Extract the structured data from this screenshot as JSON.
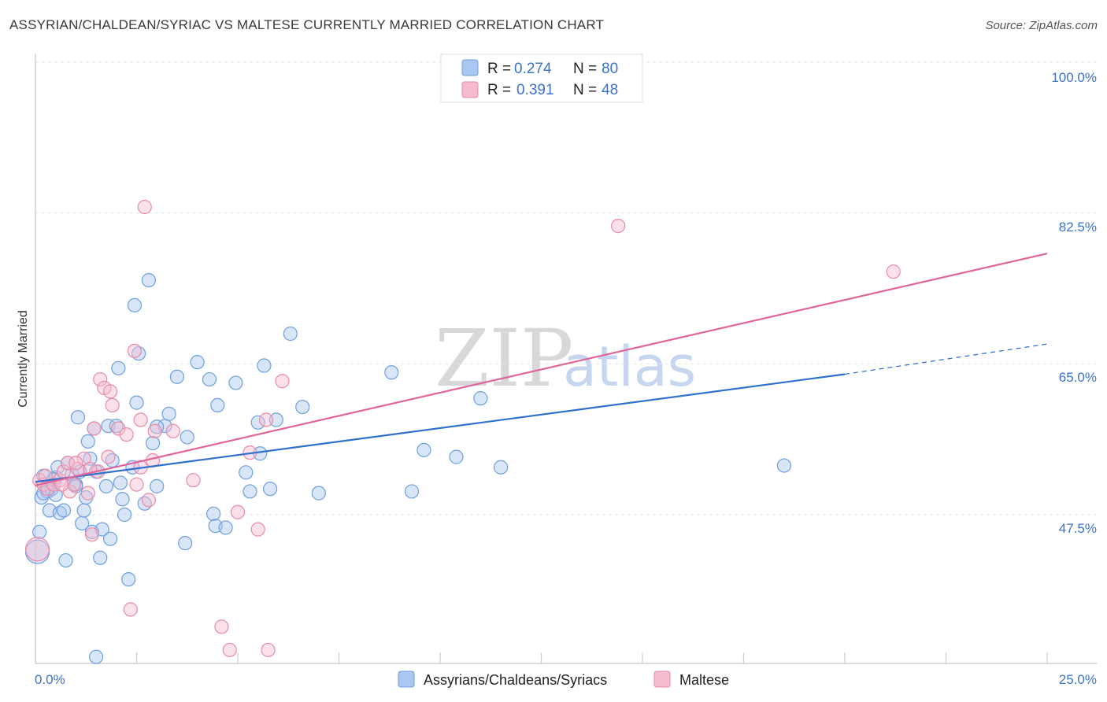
{
  "title": "ASSYRIAN/CHALDEAN/SYRIAC VS MALTESE CURRENTLY MARRIED CORRELATION CHART",
  "source": "Source: ZipAtlas.com",
  "watermark": {
    "zip": "ZIP",
    "atlas": "atlas"
  },
  "chart_data": {
    "type": "scatter",
    "title": "ASSYRIAN/CHALDEAN/SYRIAC VS MALTESE CURRENTLY MARRIED CORRELATION CHART",
    "xlabel": "",
    "ylabel": "Currently Married",
    "xlim": [
      0,
      25
    ],
    "ylim": [
      33,
      102
    ],
    "x_tick_labels": [
      "0.0%",
      "25.0%"
    ],
    "y_ticks": [
      47.5,
      65.0,
      82.5,
      100.0
    ],
    "y_tick_labels": [
      "47.5%",
      "65.0%",
      "82.5%",
      "100.0%"
    ],
    "grid": true,
    "legend": {
      "position": "top-center",
      "entries": [
        {
          "r_label": "R = ",
          "r_value": "0.274",
          "n_label": "N = ",
          "n_value": "80"
        },
        {
          "r_label": "R = ",
          "r_value": "0.391",
          "n_label": "N = ",
          "n_value": "48"
        }
      ]
    },
    "series": [
      {
        "name": "Assyrians/Chaldeans/Syriacs",
        "color": "#6f9fe0",
        "fill": "#a9c7f0",
        "trend": {
          "x0": 0,
          "y0": 51.3,
          "x1": 20,
          "y1": 63.8,
          "dash_x1": 25,
          "dash_y1": 67.3,
          "color": "#2f6fce"
        },
        "points": [
          [
            0.1,
            45.5
          ],
          [
            0.15,
            49.5
          ],
          [
            0.2,
            52.0
          ],
          [
            0.3,
            50.2
          ],
          [
            0.35,
            48.0
          ],
          [
            0.4,
            50.5
          ],
          [
            0.5,
            51.8
          ],
          [
            0.55,
            53.0
          ],
          [
            0.6,
            47.7
          ],
          [
            0.7,
            48.0
          ],
          [
            0.75,
            42.2
          ],
          [
            0.8,
            53.5
          ],
          [
            0.9,
            52.2
          ],
          [
            1.0,
            51.0
          ],
          [
            1.05,
            58.8
          ],
          [
            1.1,
            52.5
          ],
          [
            1.15,
            46.5
          ],
          [
            1.2,
            48.0
          ],
          [
            1.25,
            49.5
          ],
          [
            1.3,
            56.0
          ],
          [
            1.35,
            54.0
          ],
          [
            1.4,
            45.5
          ],
          [
            1.45,
            57.5
          ],
          [
            1.5,
            52.5
          ],
          [
            1.6,
            42.5
          ],
          [
            1.65,
            45.8
          ],
          [
            1.75,
            50.8
          ],
          [
            1.8,
            57.8
          ],
          [
            1.85,
            44.7
          ],
          [
            1.9,
            53.8
          ],
          [
            2.0,
            57.8
          ],
          [
            2.05,
            64.5
          ],
          [
            2.1,
            51.2
          ],
          [
            2.15,
            49.3
          ],
          [
            2.2,
            47.5
          ],
          [
            2.3,
            40.0
          ],
          [
            2.4,
            53.0
          ],
          [
            2.45,
            71.8
          ],
          [
            2.5,
            60.5
          ],
          [
            2.55,
            66.2
          ],
          [
            2.7,
            48.8
          ],
          [
            2.8,
            74.7
          ],
          [
            2.9,
            55.8
          ],
          [
            3.0,
            50.8
          ],
          [
            3.2,
            57.8
          ],
          [
            3.3,
            59.2
          ],
          [
            3.5,
            63.5
          ],
          [
            3.7,
            44.2
          ],
          [
            3.75,
            56.5
          ],
          [
            4.0,
            65.2
          ],
          [
            4.3,
            63.2
          ],
          [
            4.4,
            47.6
          ],
          [
            4.45,
            46.2
          ],
          [
            4.5,
            60.2
          ],
          [
            4.7,
            46.0
          ],
          [
            4.95,
            62.8
          ],
          [
            5.2,
            52.4
          ],
          [
            5.3,
            50.2
          ],
          [
            5.5,
            58.2
          ],
          [
            5.55,
            54.6
          ],
          [
            5.65,
            64.8
          ],
          [
            5.8,
            50.5
          ],
          [
            5.95,
            58.5
          ],
          [
            6.3,
            68.5
          ],
          [
            6.6,
            60.0
          ],
          [
            7.0,
            50.0
          ],
          [
            8.8,
            64.0
          ],
          [
            9.3,
            50.2
          ],
          [
            9.6,
            55.0
          ],
          [
            10.4,
            54.2
          ],
          [
            11.0,
            61.0
          ],
          [
            11.5,
            53.0
          ],
          [
            18.5,
            53.2
          ],
          [
            1.5,
            31.0
          ],
          [
            0.2,
            50.0
          ],
          [
            0.5,
            49.8
          ],
          [
            1.0,
            50.8
          ],
          [
            0.05,
            43.2
          ],
          [
            0.45,
            51.6
          ],
          [
            3.0,
            57.7
          ]
        ]
      },
      {
        "name": "Maltese",
        "color": "#e88aa8",
        "fill": "#f5bcd0",
        "trend": {
          "x0": 0,
          "y0": 50.9,
          "x1": 25,
          "y1": 77.8,
          "color": "#e0649a"
        },
        "points": [
          [
            0.1,
            51.5
          ],
          [
            0.2,
            51.0
          ],
          [
            0.3,
            50.5
          ],
          [
            0.45,
            51.0
          ],
          [
            0.6,
            51.5
          ],
          [
            0.7,
            52.5
          ],
          [
            0.8,
            53.5
          ],
          [
            0.85,
            50.2
          ],
          [
            0.95,
            51.0
          ],
          [
            1.05,
            52.8
          ],
          [
            1.2,
            54.0
          ],
          [
            1.3,
            50.0
          ],
          [
            1.4,
            45.2
          ],
          [
            1.45,
            57.5
          ],
          [
            1.55,
            52.5
          ],
          [
            1.6,
            63.2
          ],
          [
            1.7,
            62.2
          ],
          [
            1.8,
            54.2
          ],
          [
            1.85,
            61.8
          ],
          [
            1.9,
            60.2
          ],
          [
            2.05,
            57.5
          ],
          [
            2.25,
            56.8
          ],
          [
            2.35,
            36.5
          ],
          [
            2.45,
            66.5
          ],
          [
            2.6,
            58.5
          ],
          [
            2.7,
            83.2
          ],
          [
            2.8,
            49.2
          ],
          [
            2.9,
            53.8
          ],
          [
            2.95,
            57.2
          ],
          [
            3.4,
            57.2
          ],
          [
            3.9,
            51.5
          ],
          [
            4.6,
            34.5
          ],
          [
            4.8,
            31.8
          ],
          [
            5.0,
            47.8
          ],
          [
            5.3,
            54.7
          ],
          [
            5.5,
            45.8
          ],
          [
            5.7,
            58.5
          ],
          [
            5.75,
            31.8
          ],
          [
            6.1,
            63.0
          ],
          [
            14.4,
            81.0
          ],
          [
            21.2,
            75.7
          ],
          [
            0.05,
            43.5
          ],
          [
            0.25,
            52.0
          ],
          [
            0.65,
            51.0
          ],
          [
            1.0,
            53.5
          ],
          [
            1.35,
            52.8
          ],
          [
            2.5,
            51.0
          ],
          [
            2.6,
            53.0
          ]
        ]
      }
    ]
  }
}
